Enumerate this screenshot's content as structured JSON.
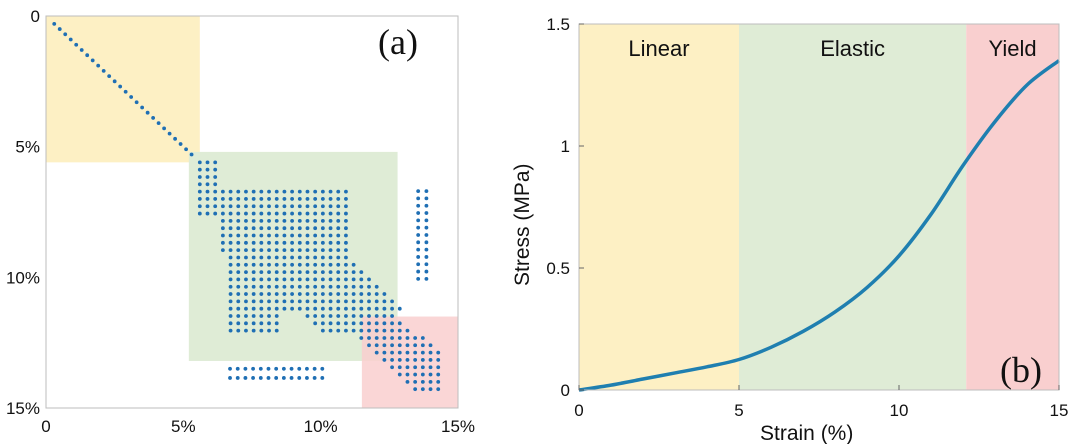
{
  "chart_data": [
    {
      "type": "scatter",
      "panel_label": "(a)",
      "x_axis": {
        "range": [
          0,
          15
        ],
        "ticks": [
          0,
          5,
          10,
          15
        ],
        "tick_labels": [
          "0",
          "5%",
          "10%",
          "15%"
        ]
      },
      "y_axis": {
        "range": [
          0,
          15
        ],
        "inverted": true,
        "ticks": [
          0,
          5,
          10,
          15
        ],
        "tick_labels": [
          "0",
          "5%",
          "10%",
          "15%"
        ]
      },
      "regions": [
        {
          "color": "#fdf0c4",
          "x": [
            0,
            5.6
          ],
          "y": [
            0,
            5.6
          ]
        },
        {
          "color": "#dfecd6",
          "x": [
            5.2,
            12.8
          ],
          "y": [
            5.2,
            13.2
          ]
        },
        {
          "color": "#f9cfcf",
          "x": [
            11.5,
            15
          ],
          "y": [
            11.5,
            15
          ]
        }
      ],
      "point_color": "#1f6fb4",
      "points_description": "diagonal from (0.3,0.3) to (5.3,5.3); dense band 5.5–14.5; two side clusters"
    },
    {
      "type": "line",
      "panel_label": "(b)",
      "xlabel": "Strain (%)",
      "ylabel": "Stress (MPa)",
      "xlim": [
        0,
        15
      ],
      "ylim": [
        0,
        1.5
      ],
      "x_ticks": [
        "0",
        "5",
        "10",
        "15"
      ],
      "y_ticks": [
        "0",
        "0.5",
        "1",
        "1.5"
      ],
      "regions": [
        {
          "label": "Linear",
          "x": [
            0,
            5
          ],
          "color": "#fdf0c4"
        },
        {
          "label": "Elastic",
          "x": [
            5,
            12.1
          ],
          "color": "#dfecd6"
        },
        {
          "label": "Yield",
          "x": [
            12.1,
            15
          ],
          "color": "#f9cfcf"
        }
      ],
      "series": [
        {
          "color": "#1f7fb0",
          "x": [
            0,
            1,
            2,
            3,
            4,
            5,
            6,
            7,
            8,
            9,
            10,
            11,
            12,
            13,
            14,
            15
          ],
          "y": [
            0,
            0.02,
            0.045,
            0.07,
            0.095,
            0.125,
            0.175,
            0.24,
            0.32,
            0.42,
            0.55,
            0.72,
            0.92,
            1.1,
            1.25,
            1.35
          ]
        }
      ]
    }
  ]
}
